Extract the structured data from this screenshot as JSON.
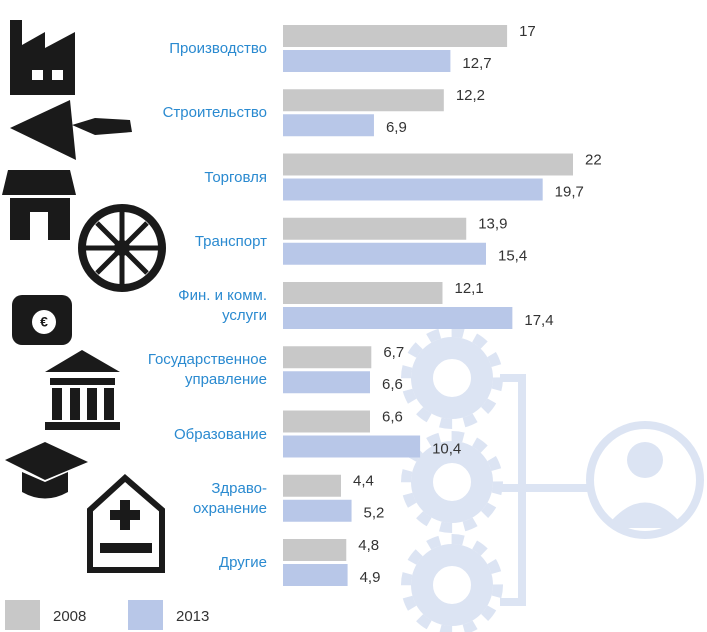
{
  "chart_data": {
    "type": "bar",
    "orientation": "horizontal",
    "categories": [
      "Производство",
      "Строительство",
      "Торговля",
      "Транспорт",
      "Фин. и комм.\nуслуги",
      "Государственное\nуправление",
      "Образование",
      "Здраво-\nохранение",
      "Другие"
    ],
    "series": [
      {
        "name": "2008",
        "color": "#c8c8c8",
        "values": [
          17,
          12.2,
          22,
          13.9,
          12.1,
          6.7,
          6.6,
          4.4,
          4.8
        ],
        "value_labels": [
          "17",
          "12,2",
          "22",
          "13,9",
          "12,1",
          "6,7",
          "6,6",
          "4,4",
          "4,8"
        ]
      },
      {
        "name": "2013",
        "color": "#b8c7e8",
        "values": [
          12.7,
          6.9,
          19.7,
          15.4,
          17.4,
          6.6,
          10.4,
          5.2,
          4.9
        ],
        "value_labels": [
          "12,7",
          "6,9",
          "19,7",
          "15,4",
          "17,4",
          "6,6",
          "10,4",
          "5,2",
          "4,9"
        ]
      }
    ]
  }
}
